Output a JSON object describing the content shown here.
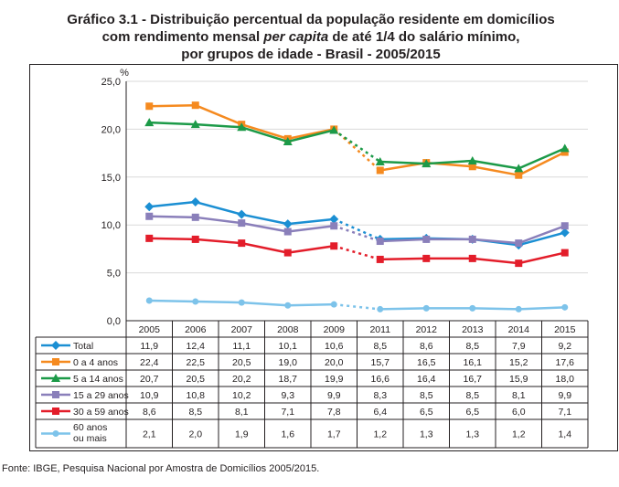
{
  "title": {
    "line1": "Gráfico 3.1 - Distribuição percentual da população residente em domicílios",
    "line2_a": "com rendimento mensal ",
    "line2_b": "per capita",
    "line2_c": " de até 1/4 do salário mínimo,",
    "line3": "por grupos de idade - Brasil - 2005/2015"
  },
  "source": "Fonte: IBGE, Pesquisa Nacional por Amostra de Domicílios 2005/2015.",
  "chart_data": {
    "type": "line",
    "ylabel": "%",
    "ylim": [
      0,
      25
    ],
    "yticks": [
      "0,0",
      "5,0",
      "10,0",
      "15,0",
      "20,0",
      "25,0"
    ],
    "categories": [
      "2005",
      "2006",
      "2007",
      "2008",
      "2009",
      "2011",
      "2012",
      "2013",
      "2014",
      "2015"
    ],
    "gap_after_index": 4,
    "grid": true,
    "legend": "table below chart",
    "series": [
      {
        "name": "Total",
        "color": "#1b8fd3",
        "marker": "diamond",
        "values": [
          11.9,
          12.4,
          11.1,
          10.1,
          10.6,
          8.5,
          8.6,
          8.5,
          7.9,
          9.2
        ],
        "labels": [
          "11,9",
          "12,4",
          "11,1",
          "10,1",
          "10,6",
          "8,5",
          "8,6",
          "8,5",
          "7,9",
          "9,2"
        ]
      },
      {
        "name": "0 a 4 anos",
        "color": "#f58a1f",
        "marker": "square",
        "values": [
          22.4,
          22.5,
          20.5,
          19.0,
          20.0,
          15.7,
          16.5,
          16.1,
          15.2,
          17.6
        ],
        "labels": [
          "22,4",
          "22,5",
          "20,5",
          "19,0",
          "20,0",
          "15,7",
          "16,5",
          "16,1",
          "15,2",
          "17,6"
        ]
      },
      {
        "name": "5 a 14 anos",
        "color": "#1c9a48",
        "marker": "triangle",
        "values": [
          20.7,
          20.5,
          20.2,
          18.7,
          19.9,
          16.6,
          16.4,
          16.7,
          15.9,
          18.0
        ],
        "labels": [
          "20,7",
          "20,5",
          "20,2",
          "18,7",
          "19,9",
          "16,6",
          "16,4",
          "16,7",
          "15,9",
          "18,0"
        ]
      },
      {
        "name": "15 a 29 anos",
        "color": "#8a7fba",
        "marker": "square",
        "values": [
          10.9,
          10.8,
          10.2,
          9.3,
          9.9,
          8.3,
          8.5,
          8.5,
          8.1,
          9.9
        ],
        "labels": [
          "10,9",
          "10,8",
          "10,2",
          "9,3",
          "9,9",
          "8,3",
          "8,5",
          "8,5",
          "8,1",
          "9,9"
        ]
      },
      {
        "name": "30 a 59 anos",
        "color": "#e31d2a",
        "marker": "square",
        "values": [
          8.6,
          8.5,
          8.1,
          7.1,
          7.8,
          6.4,
          6.5,
          6.5,
          6.0,
          7.1
        ],
        "labels": [
          "8,6",
          "8,5",
          "8,1",
          "7,1",
          "7,8",
          "6,4",
          "6,5",
          "6,5",
          "6,0",
          "7,1"
        ]
      },
      {
        "name": "60 anos ou mais",
        "name_lines": [
          "60 anos",
          "ou mais"
        ],
        "color": "#7dc3ea",
        "marker": "circle",
        "values": [
          2.1,
          2.0,
          1.9,
          1.6,
          1.7,
          1.2,
          1.3,
          1.3,
          1.2,
          1.4
        ],
        "labels": [
          "2,1",
          "2,0",
          "1,9",
          "1,6",
          "1,7",
          "1,2",
          "1,3",
          "1,3",
          "1,2",
          "1,4"
        ]
      }
    ]
  }
}
